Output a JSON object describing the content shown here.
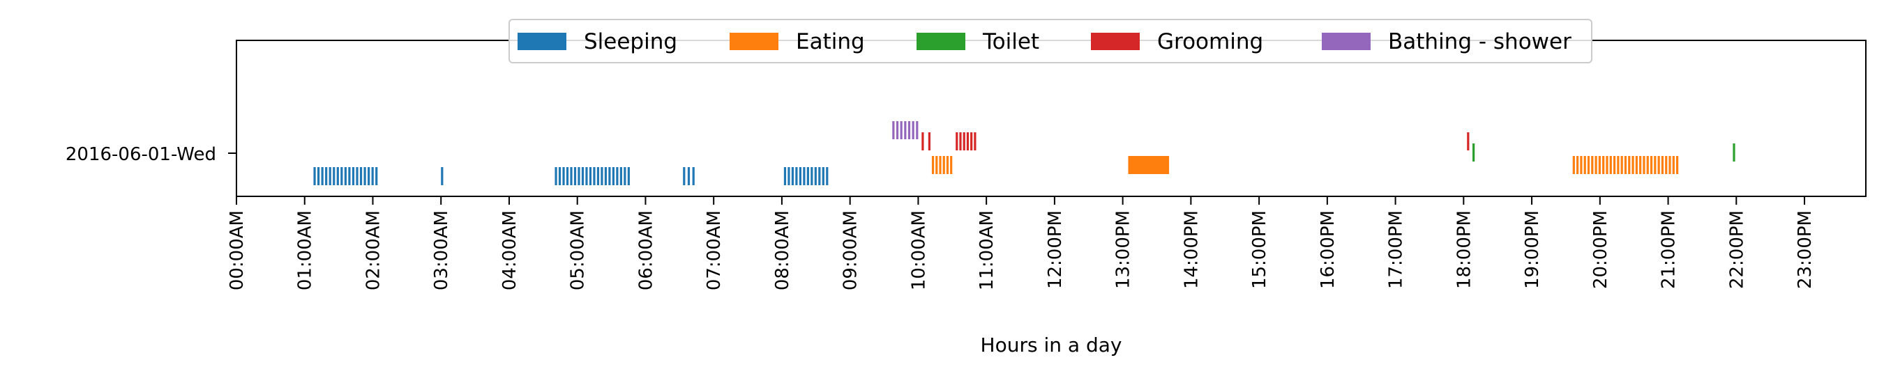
{
  "chart_data": {
    "type": "broken_barh",
    "title": "",
    "xlabel": "Hours in a day",
    "ylabel": "",
    "xlim": [
      0,
      24
    ],
    "day_label": "2016-06-01-Wed",
    "x_ticks": [
      "00:00AM",
      "01:00AM",
      "02:00AM",
      "03:00AM",
      "04:00AM",
      "05:00AM",
      "06:00AM",
      "07:00AM",
      "08:00AM",
      "09:00AM",
      "10:00AM",
      "11:00AM",
      "12:00PM",
      "13:00PM",
      "14:00PM",
      "15:00PM",
      "16:00PM",
      "17:00PM",
      "18:00PM",
      "19:00PM",
      "20:00PM",
      "21:00PM",
      "22:00PM",
      "23:00PM"
    ],
    "legend": {
      "placement": "top-center",
      "entries": [
        "Sleeping",
        "Eating",
        "Toilet",
        "Grooming",
        "Bathing - shower"
      ]
    },
    "series": [
      {
        "name": "Sleeping",
        "color": "#1f77b4",
        "events": [
          [
            1.13,
            2.07
          ],
          [
            3.0,
            3.08
          ],
          [
            4.67,
            5.77
          ],
          [
            6.55,
            6.72
          ],
          [
            8.03,
            8.68
          ]
        ]
      },
      {
        "name": "Eating",
        "color": "#ff7f0e",
        "events": [
          [
            10.2,
            10.5
          ],
          [
            13.08,
            13.68
          ],
          [
            19.6,
            21.15
          ]
        ]
      },
      {
        "name": "Toilet",
        "color": "#2ca02c",
        "events": [
          [
            18.13,
            18.16
          ],
          [
            21.95,
            21.98
          ]
        ]
      },
      {
        "name": "Grooming",
        "color": "#d62728",
        "events": [
          [
            10.05,
            10.18
          ],
          [
            10.55,
            10.85
          ],
          [
            18.05,
            18.08
          ]
        ]
      },
      {
        "name": "Bathing - shower",
        "color": "#9467bd",
        "events": [
          [
            9.62,
            10.0
          ]
        ]
      }
    ]
  }
}
